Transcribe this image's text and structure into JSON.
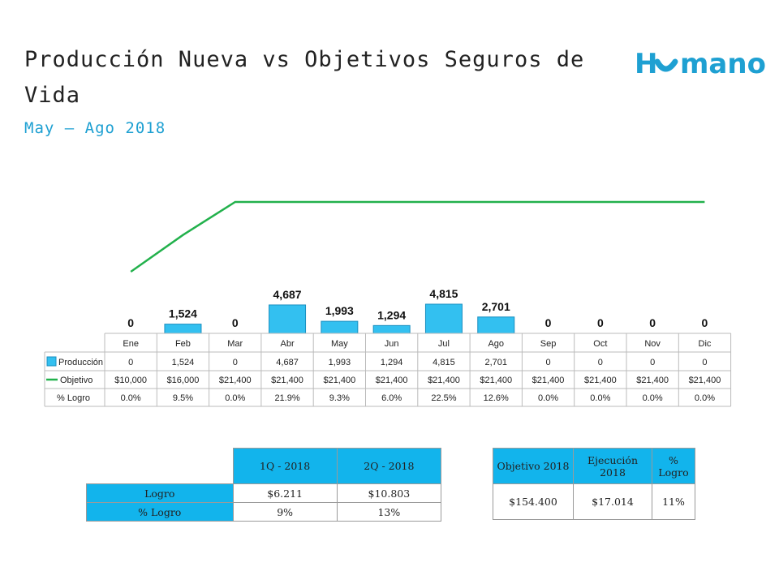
{
  "header": {
    "title": "Producción Nueva vs Objetivos Seguros de Vida",
    "subtitle": "May – Ago 2018",
    "logo_text": "Humano",
    "brand_color": "#1ea0d2"
  },
  "chart_data": {
    "type": "bar",
    "categories": [
      "Ene",
      "Feb",
      "Mar",
      "Abr",
      "May",
      "Jun",
      "Jul",
      "Ago",
      "Sep",
      "Oct",
      "Nov",
      "Dic"
    ],
    "series": [
      {
        "name": "Producción",
        "type": "bar",
        "color": "#33c0f0",
        "values": [
          0,
          1524,
          0,
          4687,
          1993,
          1294,
          4815,
          2701,
          0,
          0,
          0,
          0
        ],
        "labels": [
          "0",
          "1,524",
          "0",
          "4,687",
          "1,993",
          "1,294",
          "4,815",
          "2,701",
          "0",
          "0",
          "0",
          "0"
        ]
      },
      {
        "name": "Objetivo",
        "type": "line",
        "color": "#22b14c",
        "values": [
          10000,
          16000,
          21400,
          21400,
          21400,
          21400,
          21400,
          21400,
          21400,
          21400,
          21400,
          21400
        ],
        "labels": [
          "$10,000",
          "$16,000",
          "$21,400",
          "$21,400",
          "$21,400",
          "$21,400",
          "$21,400",
          "$21,400",
          "$21,400",
          "$21,400",
          "$21,400",
          "$21,400"
        ]
      },
      {
        "name": "% Logro",
        "type": "table",
        "labels": [
          "0.0%",
          "9.5%",
          "0.0%",
          "21.9%",
          "9.3%",
          "6.0%",
          "22.5%",
          "12.6%",
          "0.0%",
          "0.0%",
          "0.0%",
          "0.0%"
        ]
      }
    ],
    "legend": "data-table"
  },
  "quarter_table": {
    "headers": [
      "1Q - 2018",
      "2Q - 2018"
    ],
    "rows": [
      {
        "label": "Logro",
        "values": [
          "$6.211",
          "$10.803"
        ]
      },
      {
        "label": "% Logro",
        "values": [
          "9%",
          "13%"
        ]
      }
    ]
  },
  "summary_table": {
    "headers": [
      "Objetivo 2018",
      "Ejecución 2018",
      "% Logro"
    ],
    "values": [
      "$154.400",
      "$17.014",
      "11%"
    ]
  }
}
